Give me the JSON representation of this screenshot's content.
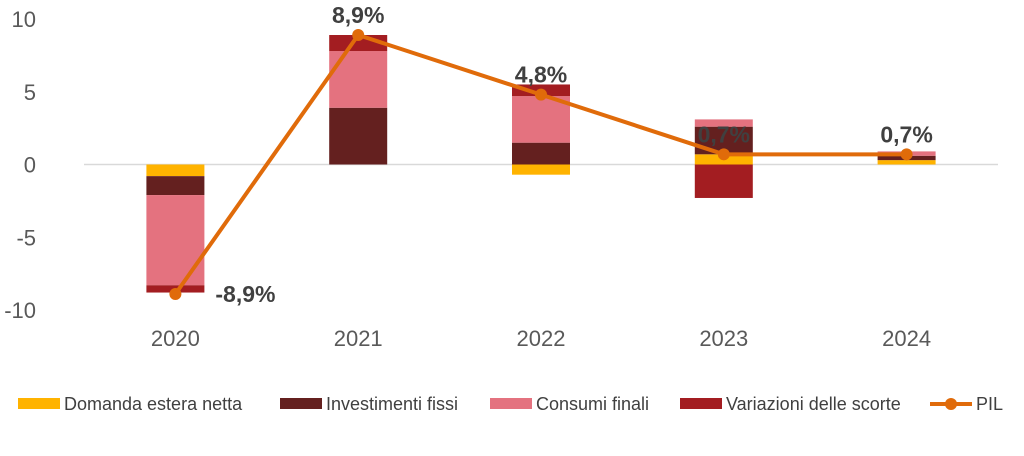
{
  "chart_data": {
    "type": "bar",
    "stacked": true,
    "categories": [
      "2020",
      "2021",
      "2022",
      "2023",
      "2024"
    ],
    "ylim": [
      -10,
      10
    ],
    "yticks": [
      "10",
      "5",
      "0",
      "-5",
      "-10"
    ],
    "ytick_values": [
      10,
      5,
      0,
      -5,
      -10
    ],
    "series": [
      {
        "name": "Domanda estera netta",
        "color": "#FFB300",
        "values": [
          -0.8,
          0.0,
          -0.7,
          0.7,
          0.3
        ]
      },
      {
        "name": "Investimenti fissi",
        "color": "#64201F",
        "values": [
          -1.3,
          3.9,
          1.5,
          1.9,
          0.3
        ]
      },
      {
        "name": "Consumi finali",
        "color": "#E4727F",
        "values": [
          -6.2,
          3.9,
          3.2,
          0.5,
          0.3
        ]
      },
      {
        "name": "Variazioni delle scorte",
        "color": "#A31D21",
        "values": [
          -0.5,
          1.1,
          0.8,
          -2.3,
          0.0
        ]
      }
    ],
    "line": {
      "name": "PIL",
      "color": "#E06B0A",
      "values": [
        -8.9,
        8.9,
        4.8,
        0.7,
        0.7
      ],
      "labels": [
        "-8,9%",
        "8,9%",
        "4,8%",
        "0,7%",
        "0,7%"
      ]
    },
    "legend_position": "bottom"
  }
}
